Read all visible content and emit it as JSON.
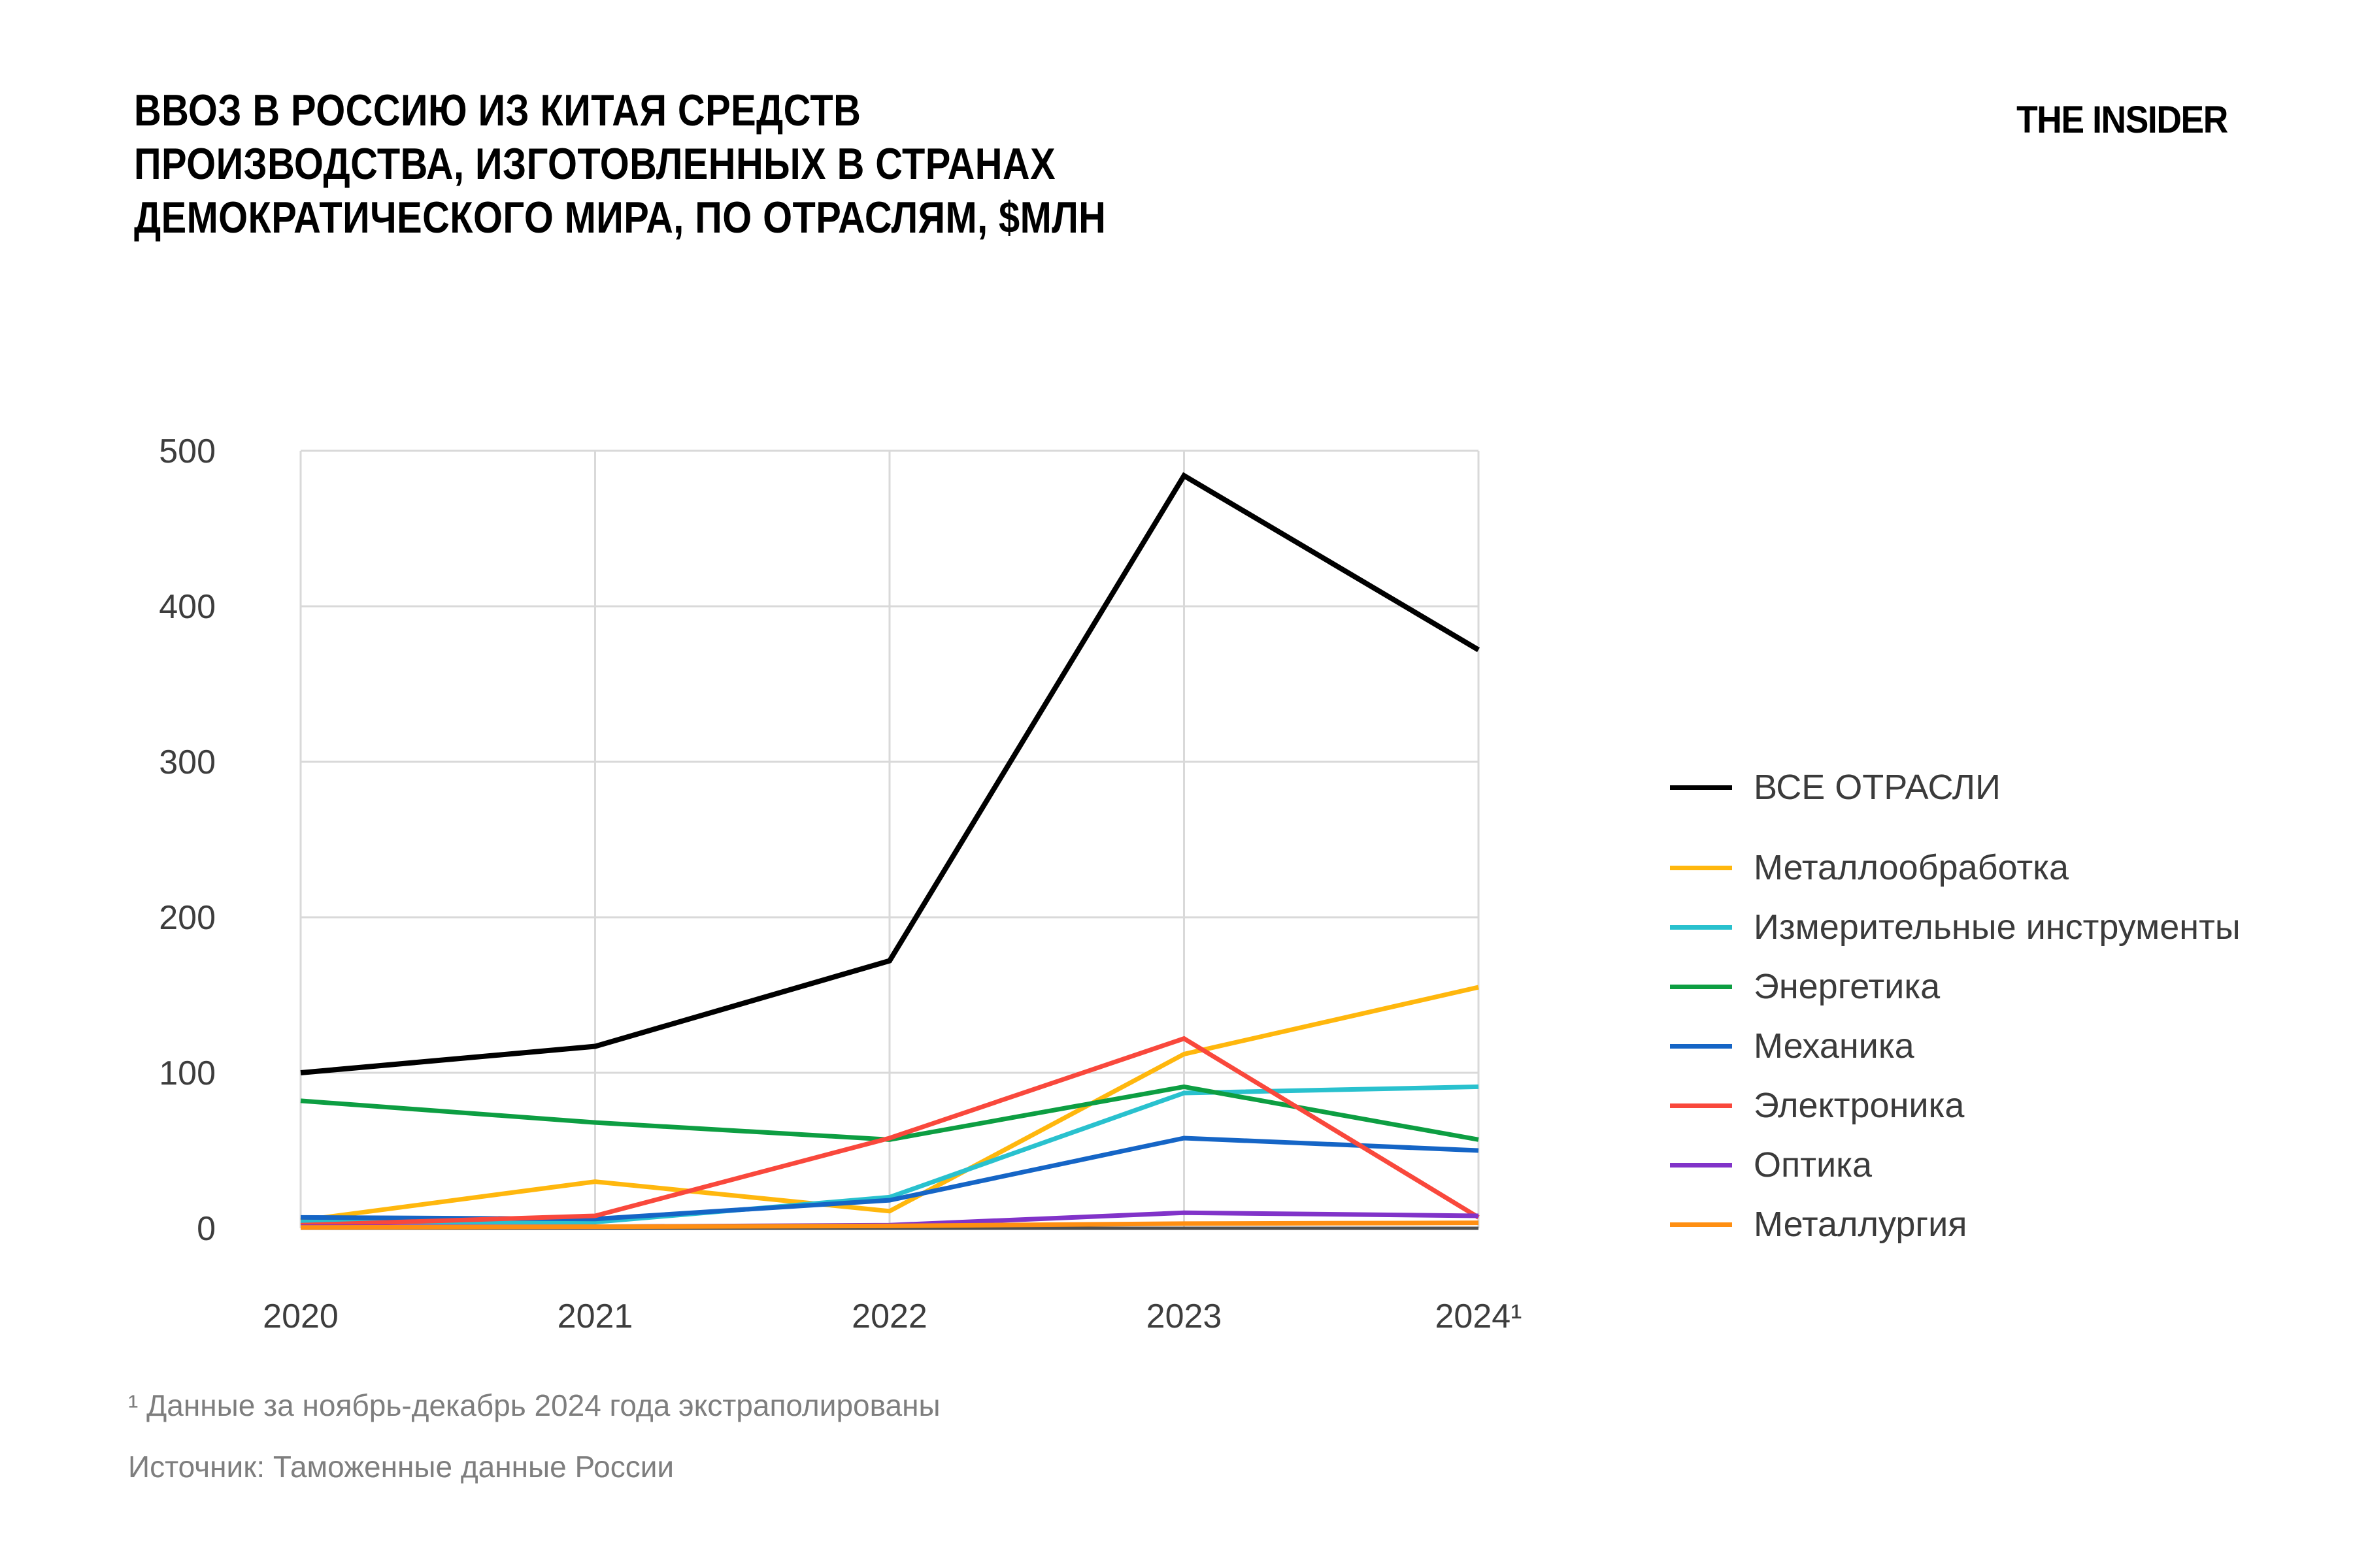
{
  "header": {
    "title_lines": [
      "ВВОЗ В РОССИЮ ИЗ КИТАЯ СРЕДСТВ",
      "ПРОИЗВОДСТВА, ИЗГОТОВЛЕННЫХ В СТРАНАХ",
      "ДЕМОКРАТИЧЕСКОГО МИРА, ПО ОТРАСЛЯМ, $МЛН"
    ],
    "logo": "THE INSIDER"
  },
  "chart_data": {
    "type": "line",
    "title": "ВВОЗ В РОССИЮ ИЗ КИТАЯ СРЕДСТВ ПРОИЗВОДСТВА, ИЗГОТОВЛЕННЫХ В СТРАНАХ ДЕМОКРАТИЧЕСКОГО МИРА, ПО ОТРАСЛЯМ, $МЛН",
    "x_labels": [
      "2020",
      "2021",
      "2022",
      "2023",
      "2024¹"
    ],
    "y_ticks": [
      0,
      100,
      200,
      300,
      400,
      500
    ],
    "ylim": [
      0,
      500
    ],
    "grid": true,
    "legend_position": "right",
    "axis": {
      "tick_color": "#3d3d3d",
      "grid_color": "#d9d9d9",
      "zero_line_color": "#4f4f4f"
    },
    "series": [
      {
        "name": "ВСЕ ОТРАСЛИ",
        "color": "#000000",
        "values": [
          100,
          117,
          172,
          484,
          372
        ]
      },
      {
        "name": "Металлообработка",
        "color": "#ffb70d",
        "values": [
          5,
          30,
          11,
          112,
          155
        ]
      },
      {
        "name": "Измерительные инструменты",
        "color": "#29c1ce",
        "values": [
          4,
          4,
          20,
          87,
          91
        ]
      },
      {
        "name": "Энергетика",
        "color": "#0d9e42",
        "values": [
          82,
          68,
          57,
          91,
          57
        ]
      },
      {
        "name": "Механика",
        "color": "#1565c6",
        "values": [
          7,
          6,
          18,
          58,
          50
        ]
      },
      {
        "name": "Электроника",
        "color": "#f9483c",
        "values": [
          2,
          8,
          58,
          122,
          7
        ]
      },
      {
        "name": "Оптика",
        "color": "#8133c9",
        "values": [
          1,
          1,
          2,
          10,
          8
        ]
      },
      {
        "name": "Металлургия",
        "color": "#ff8f12",
        "values": [
          0.5,
          1,
          1.5,
          3,
          3.5
        ]
      }
    ]
  },
  "footnotes": {
    "note": "¹ Данные за ноябрь-декабрь 2024 года экстраполированы",
    "source": "Источник: Таможенные данные России"
  }
}
